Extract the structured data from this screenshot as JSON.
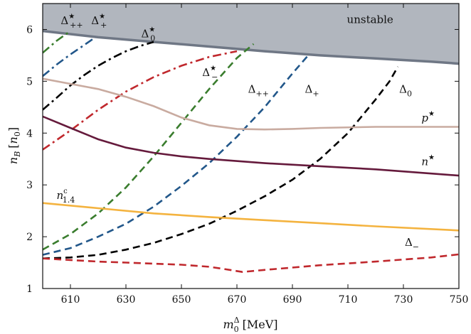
{
  "chart_data": {
    "type": "line",
    "title": "",
    "xlabel": "m_0^Δ [MeV]",
    "ylabel": "n_B [n_0]",
    "xlim": [
      600,
      750
    ],
    "ylim": [
      1,
      6.5
    ],
    "xticks": [
      610,
      630,
      650,
      670,
      690,
      710,
      730,
      750
    ],
    "yticks": [
      1,
      2,
      3,
      4,
      5,
      6
    ],
    "grid": false,
    "legend": "none",
    "unstable_region": {
      "label": "unstable",
      "color": "#b1b6be",
      "boundary_color": "#6f7785",
      "x": [
        600,
        620,
        640,
        660,
        680,
        700,
        720,
        740,
        750
      ],
      "y": [
        5.97,
        5.85,
        5.76,
        5.67,
        5.58,
        5.5,
        5.44,
        5.38,
        5.34
      ]
    },
    "series": [
      {
        "name": "Δ*_{++}",
        "label_html": [
          "Δ",
          "★",
          "++"
        ],
        "style": "dashdot",
        "color": "#3a7d2e",
        "x": [
          600,
          605,
          610
        ],
        "y": [
          5.55,
          5.78,
          5.97
        ]
      },
      {
        "name": "Δ*_{+}",
        "label_html": [
          "Δ",
          "★",
          "+"
        ],
        "style": "dashdot",
        "color": "#22578a",
        "x": [
          600,
          605,
          610,
          615,
          619
        ],
        "y": [
          5.1,
          5.32,
          5.52,
          5.7,
          5.85
        ]
      },
      {
        "name": "Δ*_{0}",
        "label_html": [
          "Δ",
          "★",
          "0"
        ],
        "style": "dashdot",
        "color": "#000000",
        "x": [
          600,
          605,
          610,
          615,
          620,
          625,
          630,
          635,
          640
        ],
        "y": [
          4.45,
          4.68,
          4.92,
          5.12,
          5.3,
          5.45,
          5.58,
          5.68,
          5.76
        ]
      },
      {
        "name": "Δ*_{-}",
        "label_html": [
          "Δ",
          "★",
          "−"
        ],
        "style": "dashdot",
        "color": "#c0282d",
        "x": [
          600,
          610,
          620,
          630,
          640,
          650,
          660,
          670
        ],
        "y": [
          3.68,
          4.05,
          4.45,
          4.8,
          5.08,
          5.3,
          5.47,
          5.58
        ]
      },
      {
        "name": "Δ_{++}",
        "label_html": [
          "Δ",
          "",
          "++"
        ],
        "style": "dashed",
        "color": "#3a7d2e",
        "x": [
          600,
          610,
          620,
          630,
          640,
          650,
          660,
          670,
          676
        ],
        "y": [
          1.75,
          2.05,
          2.45,
          2.95,
          3.55,
          4.2,
          4.85,
          5.45,
          5.72
        ]
      },
      {
        "name": "Δ_{+}",
        "label_html": [
          "Δ",
          "",
          "+"
        ],
        "style": "dashed",
        "color": "#22578a",
        "x": [
          600,
          610,
          620,
          630,
          640,
          650,
          660,
          670,
          680,
          690,
          696
        ],
        "y": [
          1.65,
          1.78,
          2.0,
          2.25,
          2.58,
          2.98,
          3.42,
          3.93,
          4.5,
          5.15,
          5.52
        ]
      },
      {
        "name": "Δ_{0}",
        "label_html": [
          "Δ",
          "",
          "0"
        ],
        "style": "dashed",
        "color": "#000000",
        "x": [
          600,
          610,
          620,
          630,
          640,
          650,
          660,
          670,
          680,
          690,
          700,
          710,
          720,
          725,
          728
        ],
        "y": [
          1.58,
          1.6,
          1.65,
          1.75,
          1.88,
          2.05,
          2.25,
          2.5,
          2.78,
          3.1,
          3.5,
          4.0,
          4.65,
          5.0,
          5.28
        ]
      },
      {
        "name": "Δ_{-}",
        "label_html": [
          "Δ",
          "",
          "−"
        ],
        "style": "dashed",
        "color": "#c0282d",
        "x": [
          600,
          610,
          620,
          630,
          640,
          650,
          660,
          665,
          672,
          680,
          700,
          720,
          740,
          750
        ],
        "y": [
          1.58,
          1.55,
          1.52,
          1.5,
          1.48,
          1.46,
          1.42,
          1.38,
          1.32,
          1.36,
          1.45,
          1.52,
          1.6,
          1.66
        ]
      },
      {
        "name": "p*",
        "label_html": [
          "p",
          "★",
          ""
        ],
        "style": "solid",
        "color": "#c9aba0",
        "x": [
          600,
          610,
          620,
          630,
          640,
          650,
          660,
          670,
          680,
          690,
          700,
          720,
          750
        ],
        "y": [
          5.05,
          4.95,
          4.85,
          4.7,
          4.52,
          4.3,
          4.15,
          4.08,
          4.07,
          4.08,
          4.1,
          4.12,
          4.12
        ]
      },
      {
        "name": "n*",
        "label_html": [
          "n",
          "★",
          ""
        ],
        "style": "solid",
        "color": "#651a3c",
        "x": [
          600,
          610,
          620,
          630,
          640,
          650,
          660,
          680,
          700,
          720,
          750
        ],
        "y": [
          4.32,
          4.1,
          3.88,
          3.72,
          3.62,
          3.55,
          3.5,
          3.42,
          3.36,
          3.3,
          3.18
        ]
      },
      {
        "name": "n^c_{1.4}",
        "label_html": [
          "n",
          "c",
          "1.4"
        ],
        "style": "solid",
        "color": "#f4b33f",
        "x": [
          600,
          620,
          640,
          660,
          680,
          700,
          720,
          750
        ],
        "y": [
          2.65,
          2.55,
          2.45,
          2.38,
          2.32,
          2.26,
          2.2,
          2.12
        ]
      }
    ],
    "labels": [
      {
        "series": "Δ*_{++}",
        "x": 606.5,
        "y": 6.1
      },
      {
        "series": "Δ*_{+}",
        "x": 617.5,
        "y": 6.1
      },
      {
        "series": "Δ*_{0}",
        "x": 635.5,
        "y": 5.85
      },
      {
        "series": "Δ*_{-}",
        "x": 657.5,
        "y": 5.1
      },
      {
        "series": "Δ_{++}",
        "x": 674,
        "y": 4.78
      },
      {
        "series": "Δ_{+}",
        "x": 694.5,
        "y": 4.78
      },
      {
        "series": "Δ_{0}",
        "x": 728.5,
        "y": 4.78
      },
      {
        "series": "Δ_{-}",
        "x": 730.5,
        "y": 1.82
      },
      {
        "series": "p*",
        "x": 736.5,
        "y": 4.22
      },
      {
        "series": "n*",
        "x": 736.5,
        "y": 3.38
      },
      {
        "series": "n^c_{1.4}",
        "x": 605,
        "y": 2.73
      }
    ]
  }
}
